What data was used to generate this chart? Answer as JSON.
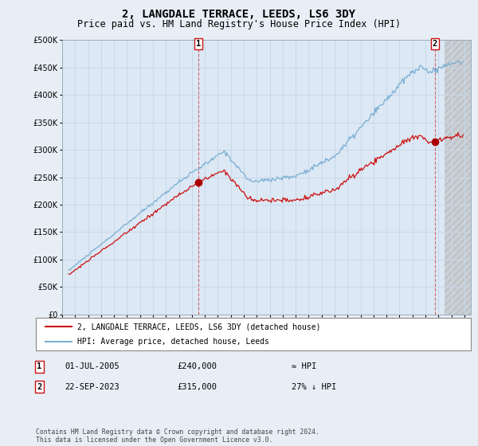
{
  "title": "2, LANGDALE TERRACE, LEEDS, LS6 3DY",
  "subtitle": "Price paid vs. HM Land Registry's House Price Index (HPI)",
  "ytick_values": [
    0,
    50000,
    100000,
    150000,
    200000,
    250000,
    300000,
    350000,
    400000,
    450000,
    500000
  ],
  "ylim": [
    0,
    500000
  ],
  "xlim_start": 1995.3,
  "xlim_end": 2026.5,
  "hatch_start": 2024.5,
  "grid_color": "#c8d8e8",
  "bg_color": "#e8eef5",
  "plot_bg": "#dce8f4",
  "hatch_bg": "#cccccc",
  "line_color_hpi": "#7bafd4",
  "line_color_price": "#cc1111",
  "marker_color": "#aa0000",
  "legend_label_price": "2, LANGDALE TERRACE, LEEDS, LS6 3DY (detached house)",
  "legend_label_hpi": "HPI: Average price, detached house, Leeds",
  "sale1_date": "01-JUL-2005",
  "sale1_price": "£240,000",
  "sale1_vs": "≈ HPI",
  "sale2_date": "22-SEP-2023",
  "sale2_price": "£315,000",
  "sale2_vs": "27% ↓ HPI",
  "footer": "Contains HM Land Registry data © Crown copyright and database right 2024.\nThis data is licensed under the Open Government Licence v3.0.",
  "sale1_x": 2005.5,
  "sale1_y": 240000,
  "sale2_x": 2023.72,
  "sale2_y": 315000,
  "title_fontsize": 10,
  "subtitle_fontsize": 8.5
}
